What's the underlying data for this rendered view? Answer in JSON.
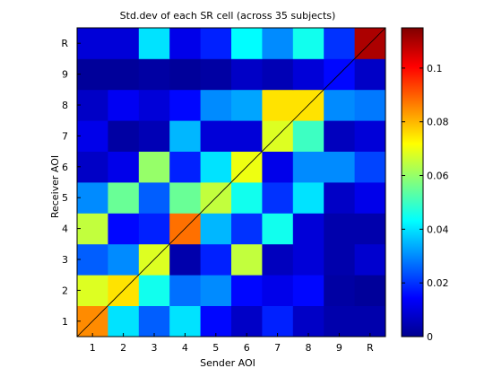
{
  "chart_data": {
    "type": "heatmap",
    "title": "Std.dev of each SR cell (across 35 subjects)",
    "xlabel": "Sender AOI",
    "ylabel": "Receiver AOI",
    "x_categories": [
      "1",
      "2",
      "3",
      "4",
      "5",
      "6",
      "7",
      "8",
      "9",
      "R"
    ],
    "y_categories": [
      "1",
      "2",
      "3",
      "4",
      "5",
      "6",
      "7",
      "8",
      "9",
      "R"
    ],
    "values": [
      [
        0.085,
        0.04,
        0.025,
        0.04,
        0.015,
        0.008,
        0.018,
        0.008,
        0.005,
        0.005
      ],
      [
        0.068,
        0.075,
        0.045,
        0.027,
        0.03,
        0.015,
        0.012,
        0.015,
        0.004,
        0.003
      ],
      [
        0.025,
        0.03,
        0.068,
        0.005,
        0.018,
        0.065,
        0.007,
        0.01,
        0.005,
        0.009
      ],
      [
        0.065,
        0.015,
        0.018,
        0.088,
        0.035,
        0.02,
        0.045,
        0.01,
        0.005,
        0.005
      ],
      [
        0.03,
        0.055,
        0.025,
        0.055,
        0.065,
        0.045,
        0.02,
        0.04,
        0.008,
        0.012
      ],
      [
        0.008,
        0.012,
        0.06,
        0.018,
        0.04,
        0.07,
        0.012,
        0.03,
        0.03,
        0.022
      ],
      [
        0.012,
        0.004,
        0.006,
        0.035,
        0.01,
        0.01,
        0.068,
        0.05,
        0.007,
        0.01
      ],
      [
        0.008,
        0.013,
        0.01,
        0.015,
        0.03,
        0.033,
        0.075,
        0.075,
        0.03,
        0.028
      ],
      [
        0.003,
        0.003,
        0.004,
        0.003,
        0.004,
        0.008,
        0.006,
        0.01,
        0.015,
        0.008
      ],
      [
        0.01,
        0.01,
        0.04,
        0.012,
        0.018,
        0.043,
        0.03,
        0.045,
        0.02,
        0.11
      ]
    ],
    "clim": [
      0,
      0.115
    ],
    "colorbar_ticks": [
      0,
      0.02,
      0.04,
      0.06,
      0.08,
      0.1
    ],
    "colorbar_tick_labels": [
      "0",
      "0.02",
      "0.04",
      "0.06",
      "0.08",
      "0.1"
    ],
    "colormap": "jet",
    "diagonal_line": true,
    "diagonal_line_color": "#000000"
  }
}
